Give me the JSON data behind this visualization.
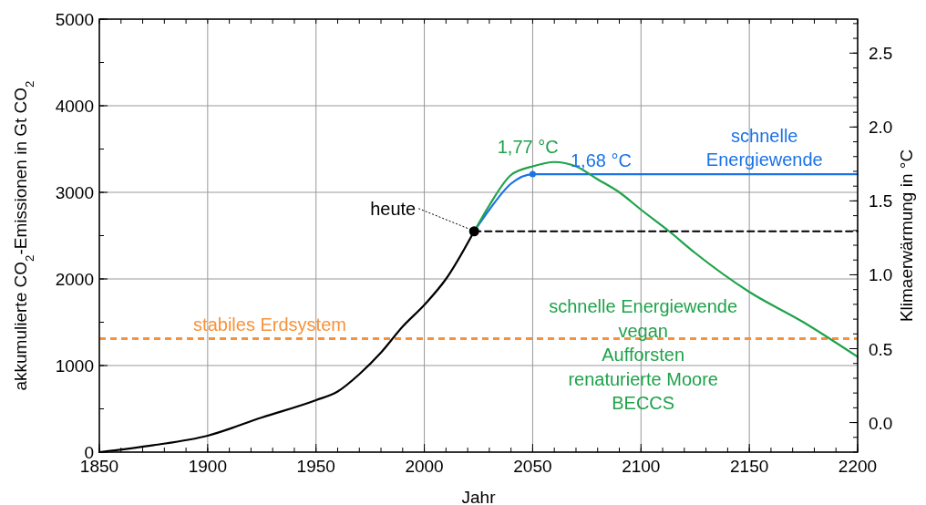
{
  "chart_data": {
    "type": "line",
    "xlabel": "Jahr",
    "ylabel": "akkumulierte CO$_{2}$-Emissionen in Gt CO$_{2}$",
    "y2label": "Klimaerwärmung in °C",
    "xlim": [
      1850,
      2200
    ],
    "xticks": [
      1850,
      1900,
      1950,
      2000,
      2050,
      2100,
      2150,
      2200
    ],
    "ylim": [
      0,
      5000
    ],
    "yticks": [
      0,
      1000,
      2000,
      3000,
      4000,
      5000
    ],
    "y2lim": [
      -0.2,
      2.73
    ],
    "y2ticks": [
      {
        "value": 0,
        "label": "0.0"
      },
      {
        "value": 0.5,
        "label": "0.5"
      },
      {
        "value": 1,
        "label": "1.0"
      },
      {
        "value": 1.5,
        "label": "1.5"
      },
      {
        "value": 2,
        "label": "2.0"
      },
      {
        "value": 2.5,
        "label": "2.5"
      }
    ],
    "grid": true,
    "series": [
      {
        "color": "#000000",
        "x": [
          1850,
          1875,
          1900,
          1925,
          1950,
          1960,
          1970,
          1980,
          1990,
          2000,
          2010,
          2023
        ],
        "values": [
          0,
          80,
          190,
          400,
          600,
          700,
          900,
          1150,
          1450,
          1700,
          2000,
          2550
        ],
        "line_style": "solid"
      },
      {
        "name": "schnelle Energiewende",
        "color": "#1a73e8",
        "x": [
          2023,
          2030,
          2040,
          2050,
          2200
        ],
        "values": [
          2550,
          2800,
          3100,
          3210,
          3210
        ],
        "line_style": "solid"
      },
      {
        "name": "schnelle Energiewende\nvegan\nAufforsten\nrenaturierte Moore\nBECCS",
        "color": "#1fa24a",
        "x": [
          2023,
          2030,
          2040,
          2050,
          2060,
          2070,
          2080,
          2090,
          2100,
          2113,
          2125,
          2150,
          2175,
          2200
        ],
        "values": [
          2550,
          2850,
          3200,
          3300,
          3350,
          3300,
          3150,
          3000,
          2800,
          2550,
          2300,
          1850,
          1500,
          1100
        ],
        "line_style": "solid"
      },
      {
        "color": "#000000",
        "x": [
          2023,
          2200
        ],
        "values": [
          2550,
          2550
        ],
        "line_style": "dashed"
      },
      {
        "type": "scatter",
        "color": "#000000",
        "x": [
          2023
        ],
        "values": [
          2550
        ],
        "marker": "circle"
      },
      {
        "type": "scatter",
        "color": "#1a73e8",
        "x": [
          2050
        ],
        "values": [
          3210
        ],
        "marker": "circle"
      }
    ],
    "ref_lines": [
      {
        "axis": "y",
        "value": 1310,
        "label": "stabiles Erdsystem",
        "color": "#f7923a",
        "line_style": "dashed"
      }
    ],
    "annotations": [
      {
        "text": "heute",
        "x": 2023,
        "y": 2550
      },
      {
        "text": "1,77 °C",
        "x": 2060,
        "y": 3350
      },
      {
        "text": "1,68 °C",
        "x": 2050,
        "y": 3210
      }
    ]
  }
}
